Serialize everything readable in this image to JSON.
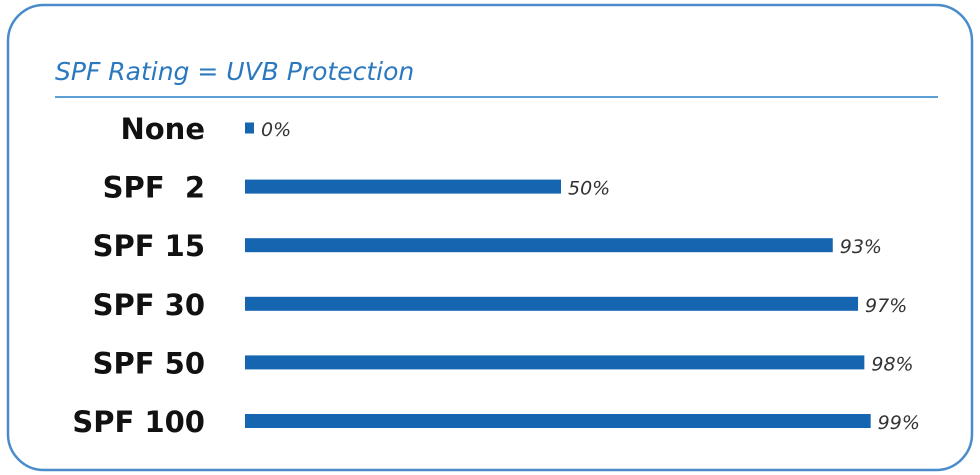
{
  "chart_data": {
    "type": "bar",
    "orientation": "horizontal",
    "title": "SPF Rating = UVB Protection",
    "categories": [
      "None",
      "SPF  2",
      "SPF 15",
      "SPF 30",
      "SPF 50",
      "SPF 100"
    ],
    "values": [
      0,
      50,
      93,
      97,
      98,
      99
    ],
    "value_labels": [
      "0%",
      "50%",
      "93%",
      "97%",
      "98%",
      "99%"
    ],
    "xlabel": "",
    "ylabel": "",
    "xlim": [
      0,
      100
    ],
    "grid": false,
    "colors": {
      "bar": "#1565b0",
      "title": "#2a78bf",
      "border": "#4a8ccb",
      "rule": "#5b9fd6"
    }
  }
}
